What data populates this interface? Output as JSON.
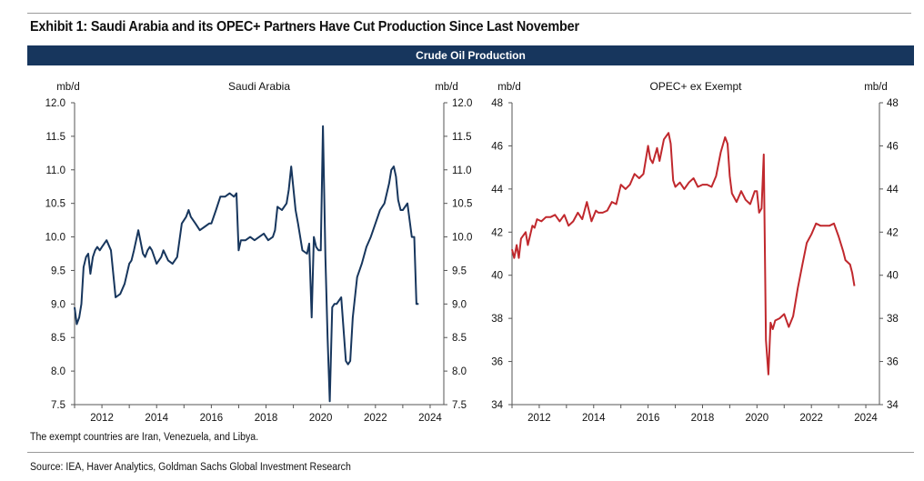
{
  "title": "Exhibit 1: Saudi Arabia and its OPEC+ Partners Have Cut Production Since Last November",
  "banner": "Crude Oil Production",
  "footnote": "The exempt countries are Iran, Venezuela, and Libya.",
  "source": "Source: IEA, Haver Analytics, Goldman Sachs Global Investment Research",
  "colors": {
    "banner": "#17365d",
    "saudi": "#17365d",
    "opec": "#c0282d"
  },
  "chart_data": [
    {
      "type": "line",
      "title": "Saudi Arabia",
      "ylabel_left": "mb/d",
      "ylabel_right": "mb/d",
      "xlim": [
        2011.0,
        2024.5
      ],
      "ylim": [
        7.5,
        12.0
      ],
      "yticks": [
        "12.0",
        "11.5",
        "11.0",
        "10.5",
        "10.0",
        "9.5",
        "9.0",
        "8.5",
        "8.0",
        "7.5"
      ],
      "xticks": [
        "2012",
        "2014",
        "2016",
        "2018",
        "2020",
        "2022",
        "2024"
      ],
      "grid": false,
      "series": [
        {
          "color": "#17365d",
          "x": [
            2011.0,
            2011.08,
            2011.17,
            2011.25,
            2011.33,
            2011.42,
            2011.5,
            2011.58,
            2011.67,
            2011.75,
            2011.83,
            2011.92,
            2012.0,
            2012.17,
            2012.33,
            2012.5,
            2012.67,
            2012.83,
            2013.0,
            2013.08,
            2013.17,
            2013.33,
            2013.5,
            2013.58,
            2013.67,
            2013.75,
            2013.83,
            2014.0,
            2014.17,
            2014.25,
            2014.42,
            2014.58,
            2014.75,
            2014.92,
            2015.08,
            2015.17,
            2015.25,
            2015.42,
            2015.58,
            2015.75,
            2015.92,
            2016.0,
            2016.17,
            2016.33,
            2016.5,
            2016.67,
            2016.83,
            2016.92,
            2017.0,
            2017.08,
            2017.25,
            2017.42,
            2017.58,
            2017.75,
            2017.92,
            2018.08,
            2018.25,
            2018.33,
            2018.42,
            2018.58,
            2018.75,
            2018.83,
            2018.92,
            2019.08,
            2019.17,
            2019.33,
            2019.5,
            2019.58,
            2019.67,
            2019.75,
            2019.83,
            2019.92,
            2020.0,
            2020.08,
            2020.17,
            2020.25,
            2020.33,
            2020.42,
            2020.5,
            2020.58,
            2020.75,
            2020.92,
            2021.0,
            2021.08,
            2021.17,
            2021.33,
            2021.5,
            2021.67,
            2021.83,
            2022.0,
            2022.17,
            2022.33,
            2022.5,
            2022.58,
            2022.67,
            2022.75,
            2022.83,
            2022.92,
            2023.0,
            2023.17,
            2023.33,
            2023.42,
            2023.5,
            2023.58
          ],
          "y": [
            8.95,
            8.7,
            8.8,
            9.0,
            9.55,
            9.7,
            9.75,
            9.45,
            9.7,
            9.8,
            9.85,
            9.8,
            9.85,
            9.95,
            9.8,
            9.1,
            9.15,
            9.3,
            9.6,
            9.65,
            9.8,
            10.1,
            9.75,
            9.7,
            9.8,
            9.85,
            9.8,
            9.6,
            9.7,
            9.8,
            9.65,
            9.6,
            9.7,
            10.2,
            10.3,
            10.4,
            10.3,
            10.2,
            10.1,
            10.15,
            10.2,
            10.2,
            10.4,
            10.6,
            10.6,
            10.65,
            10.6,
            10.65,
            9.8,
            9.95,
            9.95,
            10.0,
            9.95,
            10.0,
            10.05,
            9.95,
            10.0,
            10.1,
            10.45,
            10.4,
            10.5,
            10.7,
            11.05,
            10.4,
            10.2,
            9.8,
            9.75,
            9.9,
            8.8,
            10.0,
            9.85,
            9.8,
            9.8,
            11.65,
            9.7,
            8.5,
            7.55,
            8.95,
            9.0,
            9.0,
            9.1,
            8.15,
            8.1,
            8.15,
            8.8,
            9.4,
            9.6,
            9.85,
            10.0,
            10.2,
            10.4,
            10.5,
            10.8,
            11.0,
            11.05,
            10.9,
            10.55,
            10.4,
            10.4,
            10.5,
            10.0,
            10.0,
            9.0,
            9.0
          ]
        }
      ]
    },
    {
      "type": "line",
      "title": "OPEC+ ex Exempt",
      "ylabel_left": "mb/d",
      "ylabel_right": "mb/d",
      "xlim": [
        2011.0,
        2024.5
      ],
      "ylim": [
        34,
        48
      ],
      "yticks": [
        "48",
        "46",
        "44",
        "42",
        "40",
        "38",
        "36",
        "34"
      ],
      "xticks": [
        "2012",
        "2014",
        "2016",
        "2018",
        "2020",
        "2022",
        "2024"
      ],
      "grid": false,
      "series": [
        {
          "color": "#c0282d",
          "x": [
            2011.0,
            2011.08,
            2011.17,
            2011.25,
            2011.33,
            2011.5,
            2011.58,
            2011.75,
            2011.83,
            2011.92,
            2012.08,
            2012.25,
            2012.42,
            2012.58,
            2012.75,
            2012.92,
            2013.08,
            2013.25,
            2013.42,
            2013.58,
            2013.75,
            2013.92,
            2014.08,
            2014.17,
            2014.33,
            2014.5,
            2014.67,
            2014.83,
            2015.0,
            2015.17,
            2015.33,
            2015.5,
            2015.67,
            2015.83,
            2016.0,
            2016.08,
            2016.17,
            2016.33,
            2016.42,
            2016.58,
            2016.75,
            2016.83,
            2016.92,
            2017.0,
            2017.17,
            2017.33,
            2017.5,
            2017.67,
            2017.83,
            2018.0,
            2018.17,
            2018.33,
            2018.5,
            2018.67,
            2018.83,
            2018.92,
            2019.0,
            2019.08,
            2019.25,
            2019.42,
            2019.58,
            2019.75,
            2019.92,
            2020.0,
            2020.08,
            2020.17,
            2020.25,
            2020.33,
            2020.42,
            2020.5,
            2020.58,
            2020.67,
            2020.83,
            2021.0,
            2021.17,
            2021.33,
            2021.5,
            2021.67,
            2021.83,
            2022.0,
            2022.17,
            2022.33,
            2022.5,
            2022.67,
            2022.83,
            2023.0,
            2023.17,
            2023.25,
            2023.42,
            2023.5,
            2023.58
          ],
          "y": [
            41.2,
            40.8,
            41.4,
            40.8,
            41.7,
            42.0,
            41.4,
            42.3,
            42.2,
            42.6,
            42.5,
            42.7,
            42.7,
            42.8,
            42.5,
            42.8,
            42.3,
            42.5,
            42.9,
            42.6,
            43.4,
            42.5,
            43.0,
            42.9,
            42.9,
            43.0,
            43.4,
            43.3,
            44.2,
            44.0,
            44.2,
            44.7,
            44.5,
            44.7,
            46.0,
            45.4,
            45.2,
            45.9,
            45.3,
            46.3,
            46.6,
            46.1,
            44.4,
            44.1,
            44.3,
            44.0,
            44.3,
            44.5,
            44.1,
            44.2,
            44.2,
            44.1,
            44.6,
            45.7,
            46.4,
            46.1,
            44.6,
            43.8,
            43.4,
            43.9,
            43.5,
            43.3,
            43.9,
            43.9,
            42.9,
            43.1,
            45.6,
            37.0,
            35.4,
            37.8,
            37.5,
            37.9,
            38.0,
            38.2,
            37.6,
            38.1,
            39.4,
            40.5,
            41.5,
            41.9,
            42.4,
            42.3,
            42.3,
            42.3,
            42.4,
            41.8,
            41.1,
            40.7,
            40.5,
            40.1,
            39.5
          ]
        }
      ]
    }
  ]
}
